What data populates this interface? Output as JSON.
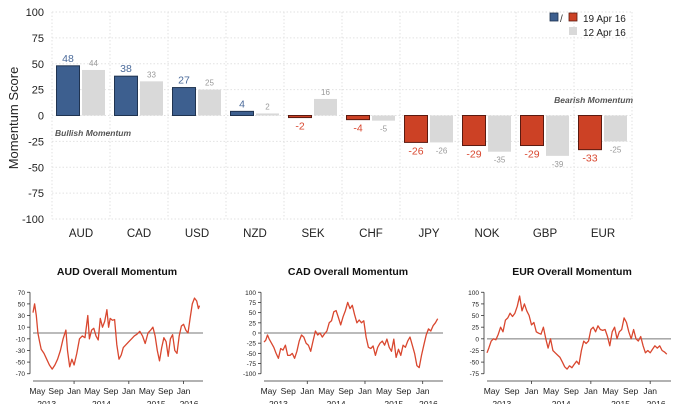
{
  "chart_data": [
    {
      "type": "bar",
      "title": "",
      "ylabel": "Momentum Score",
      "xlabel": "",
      "ylim": [
        -100,
        100
      ],
      "yticks": [
        100,
        75,
        50,
        25,
        0,
        -25,
        -50,
        -75,
        -100
      ],
      "grid": true,
      "categories": [
        "AUD",
        "CAD",
        "USD",
        "NZD",
        "SEK",
        "CHF",
        "JPY",
        "NOK",
        "GBP",
        "EUR"
      ],
      "series": [
        {
          "name": "19 Apr 16",
          "values": [
            48,
            38,
            27,
            4,
            -2,
            -4,
            -26,
            -29,
            -29,
            -33
          ]
        },
        {
          "name": "12 Apr 16",
          "values": [
            44,
            33,
            25,
            2,
            16,
            -5,
            -26,
            -35,
            -39,
            -25
          ]
        }
      ],
      "colors": {
        "bullish": "#3d5f8f",
        "bullish_dark": "#1f3350",
        "bearish": "#cc4125",
        "bearish_dark": "#5a1a10",
        "previous": "#d9d9d9",
        "bullish_label": "#4a6a9a",
        "bearish_label": "#d9472f",
        "previous_label": "#999999"
      },
      "legend": {
        "position": "top-right",
        "separator": "/",
        "current_label": "19 Apr 16",
        "previous_label": "12 Apr 16"
      },
      "annotations": {
        "bullish": "Bullish Momentum",
        "bearish": "Bearish Momentum"
      }
    },
    {
      "type": "line",
      "title": "AUD Overall Momentum",
      "ylim": [
        -75,
        70
      ],
      "yticks": [
        70,
        50,
        30,
        10,
        -10,
        -30,
        -50,
        -70
      ],
      "reference_line": 0,
      "x_month_labels": [
        "May",
        "Sep",
        "Jan",
        "May",
        "Sep",
        "Jan",
        "May",
        "Sep",
        "Jan"
      ],
      "x_year_labels": [
        "2013",
        "2014",
        "2015",
        "2016"
      ],
      "x_range": [
        2013.25,
        2016.3
      ],
      "series": [
        {
          "name": "AUD",
          "color": "#d9472f",
          "points": [
            [
              2013.25,
              35
            ],
            [
              2013.28,
              50
            ],
            [
              2013.31,
              30
            ],
            [
              2013.34,
              0
            ],
            [
              2013.37,
              -15
            ],
            [
              2013.4,
              -28
            ],
            [
              2013.45,
              -35
            ],
            [
              2013.5,
              -45
            ],
            [
              2013.55,
              -55
            ],
            [
              2013.6,
              -62
            ],
            [
              2013.65,
              -55
            ],
            [
              2013.7,
              -45
            ],
            [
              2013.75,
              -30
            ],
            [
              2013.8,
              -10
            ],
            [
              2013.85,
              5
            ],
            [
              2013.88,
              -30
            ],
            [
              2013.92,
              -58
            ],
            [
              2013.96,
              -45
            ],
            [
              2014.0,
              -55
            ],
            [
              2014.05,
              -35
            ],
            [
              2014.1,
              -10
            ],
            [
              2014.15,
              -5
            ],
            [
              2014.2,
              -8
            ],
            [
              2014.25,
              30
            ],
            [
              2014.28,
              -10
            ],
            [
              2014.32,
              5
            ],
            [
              2014.36,
              8
            ],
            [
              2014.4,
              -5
            ],
            [
              2014.44,
              -12
            ],
            [
              2014.48,
              25
            ],
            [
              2014.52,
              10
            ],
            [
              2014.56,
              20
            ],
            [
              2014.6,
              40
            ],
            [
              2014.63,
              10
            ],
            [
              2014.66,
              25
            ],
            [
              2014.7,
              22
            ],
            [
              2014.74,
              23
            ],
            [
              2014.78,
              -20
            ],
            [
              2014.82,
              -45
            ],
            [
              2014.86,
              -38
            ],
            [
              2014.9,
              -25
            ],
            [
              2014.95,
              -20
            ],
            [
              2015.0,
              -15
            ],
            [
              2015.05,
              -10
            ],
            [
              2015.1,
              -5
            ],
            [
              2015.15,
              -2
            ],
            [
              2015.2,
              3
            ],
            [
              2015.25,
              -5
            ],
            [
              2015.3,
              -18
            ],
            [
              2015.35,
              0
            ],
            [
              2015.4,
              5
            ],
            [
              2015.44,
              10
            ],
            [
              2015.48,
              -5
            ],
            [
              2015.52,
              -30
            ],
            [
              2015.56,
              -48
            ],
            [
              2015.6,
              -25
            ],
            [
              2015.64,
              -8
            ],
            [
              2015.68,
              -15
            ],
            [
              2015.72,
              -40
            ],
            [
              2015.76,
              -10
            ],
            [
              2015.8,
              -3
            ],
            [
              2015.84,
              -30
            ],
            [
              2015.88,
              -35
            ],
            [
              2015.92,
              -5
            ],
            [
              2015.96,
              12
            ],
            [
              2016.0,
              15
            ],
            [
              2016.04,
              5
            ],
            [
              2016.08,
              0
            ],
            [
              2016.12,
              25
            ],
            [
              2016.16,
              50
            ],
            [
              2016.2,
              60
            ],
            [
              2016.24,
              55
            ],
            [
              2016.27,
              42
            ],
            [
              2016.29,
              47
            ]
          ]
        }
      ]
    },
    {
      "type": "line",
      "title": "CAD Overall Momentum",
      "ylim": [
        -100,
        100
      ],
      "yticks": [
        100,
        75,
        50,
        25,
        0,
        -25,
        -50,
        -75,
        -100
      ],
      "reference_line": 0,
      "x_month_labels": [
        "May",
        "Sep",
        "Jan",
        "May",
        "Sep",
        "Jan",
        "May",
        "Sep",
        "Jan"
      ],
      "x_year_labels": [
        "2013",
        "2014",
        "2015",
        "2016"
      ],
      "x_range": [
        2013.25,
        2016.3
      ],
      "series": [
        {
          "name": "CAD",
          "color": "#d9472f",
          "points": [
            [
              2013.25,
              -22
            ],
            [
              2013.28,
              -18
            ],
            [
              2013.31,
              -5
            ],
            [
              2013.34,
              -15
            ],
            [
              2013.38,
              -25
            ],
            [
              2013.42,
              -35
            ],
            [
              2013.46,
              -50
            ],
            [
              2013.5,
              -62
            ],
            [
              2013.54,
              -38
            ],
            [
              2013.58,
              -42
            ],
            [
              2013.62,
              -30
            ],
            [
              2013.66,
              -55
            ],
            [
              2013.7,
              -55
            ],
            [
              2013.74,
              -50
            ],
            [
              2013.78,
              -62
            ],
            [
              2013.82,
              -45
            ],
            [
              2013.86,
              -20
            ],
            [
              2013.9,
              -5
            ],
            [
              2013.94,
              -10
            ],
            [
              2013.98,
              -25
            ],
            [
              2014.02,
              -30
            ],
            [
              2014.06,
              -45
            ],
            [
              2014.1,
              -20
            ],
            [
              2014.14,
              5
            ],
            [
              2014.18,
              -5
            ],
            [
              2014.22,
              0
            ],
            [
              2014.26,
              -10
            ],
            [
              2014.3,
              -2
            ],
            [
              2014.34,
              5
            ],
            [
              2014.38,
              25
            ],
            [
              2014.42,
              30
            ],
            [
              2014.46,
              52
            ],
            [
              2014.5,
              55
            ],
            [
              2014.54,
              38
            ],
            [
              2014.58,
              20
            ],
            [
              2014.62,
              40
            ],
            [
              2014.66,
              55
            ],
            [
              2014.7,
              75
            ],
            [
              2014.74,
              60
            ],
            [
              2014.78,
              68
            ],
            [
              2014.82,
              45
            ],
            [
              2014.86,
              25
            ],
            [
              2014.9,
              32
            ],
            [
              2014.94,
              25
            ],
            [
              2014.98,
              30
            ],
            [
              2015.02,
              -10
            ],
            [
              2015.06,
              -35
            ],
            [
              2015.1,
              -38
            ],
            [
              2015.14,
              -32
            ],
            [
              2015.18,
              -55
            ],
            [
              2015.22,
              -35
            ],
            [
              2015.26,
              -25
            ],
            [
              2015.3,
              -20
            ],
            [
              2015.34,
              -30
            ],
            [
              2015.38,
              -15
            ],
            [
              2015.42,
              -35
            ],
            [
              2015.46,
              -45
            ],
            [
              2015.5,
              -15
            ],
            [
              2015.54,
              -60
            ],
            [
              2015.58,
              -40
            ],
            [
              2015.62,
              -55
            ],
            [
              2015.66,
              -30
            ],
            [
              2015.7,
              -35
            ],
            [
              2015.74,
              -20
            ],
            [
              2015.78,
              -10
            ],
            [
              2015.82,
              -30
            ],
            [
              2015.86,
              -50
            ],
            [
              2015.9,
              -80
            ],
            [
              2015.94,
              -85
            ],
            [
              2015.98,
              -55
            ],
            [
              2016.02,
              -30
            ],
            [
              2016.06,
              -5
            ],
            [
              2016.1,
              10
            ],
            [
              2016.14,
              5
            ],
            [
              2016.18,
              18
            ],
            [
              2016.22,
              25
            ],
            [
              2016.26,
              35
            ]
          ]
        }
      ]
    },
    {
      "type": "line",
      "title": "EUR Overall Momentum",
      "ylim": [
        -80,
        100
      ],
      "yticks": [
        100,
        75,
        50,
        25,
        0,
        -25,
        -50,
        -75
      ],
      "reference_line": 0,
      "x_month_labels": [
        "May",
        "Sep",
        "Jan",
        "May",
        "Sep",
        "Jan",
        "May",
        "Sep",
        "Jan"
      ],
      "x_year_labels": [
        "2013",
        "2014",
        "2015",
        "2016"
      ],
      "x_range": [
        2013.25,
        2016.3
      ],
      "series": [
        {
          "name": "EUR",
          "color": "#d9472f",
          "points": [
            [
              2013.25,
              -30
            ],
            [
              2013.28,
              -20
            ],
            [
              2013.32,
              -5
            ],
            [
              2013.36,
              0
            ],
            [
              2013.4,
              -2
            ],
            [
              2013.44,
              10
            ],
            [
              2013.48,
              25
            ],
            [
              2013.52,
              15
            ],
            [
              2013.56,
              40
            ],
            [
              2013.6,
              45
            ],
            [
              2013.64,
              55
            ],
            [
              2013.68,
              48
            ],
            [
              2013.72,
              55
            ],
            [
              2013.76,
              70
            ],
            [
              2013.8,
              92
            ],
            [
              2013.84,
              60
            ],
            [
              2013.88,
              75
            ],
            [
              2013.92,
              60
            ],
            [
              2013.96,
              50
            ],
            [
              2014.0,
              30
            ],
            [
              2014.04,
              35
            ],
            [
              2014.08,
              15
            ],
            [
              2014.12,
              12
            ],
            [
              2014.16,
              10
            ],
            [
              2014.2,
              25
            ],
            [
              2014.24,
              0
            ],
            [
              2014.28,
              -20
            ],
            [
              2014.32,
              0
            ],
            [
              2014.36,
              -25
            ],
            [
              2014.4,
              -30
            ],
            [
              2014.44,
              -35
            ],
            [
              2014.48,
              -40
            ],
            [
              2014.52,
              -50
            ],
            [
              2014.56,
              -60
            ],
            [
              2014.6,
              -65
            ],
            [
              2014.64,
              -58
            ],
            [
              2014.68,
              -62
            ],
            [
              2014.72,
              -55
            ],
            [
              2014.76,
              -48
            ],
            [
              2014.8,
              -55
            ],
            [
              2014.84,
              -25
            ],
            [
              2014.88,
              -5
            ],
            [
              2014.92,
              -10
            ],
            [
              2014.96,
              -5
            ],
            [
              2015.0,
              20
            ],
            [
              2015.04,
              25
            ],
            [
              2015.08,
              15
            ],
            [
              2015.12,
              28
            ],
            [
              2015.16,
              20
            ],
            [
              2015.2,
              18
            ],
            [
              2015.24,
              20
            ],
            [
              2015.28,
              5
            ],
            [
              2015.32,
              -15
            ],
            [
              2015.36,
              15
            ],
            [
              2015.4,
              25
            ],
            [
              2015.44,
              0
            ],
            [
              2015.48,
              15
            ],
            [
              2015.52,
              20
            ],
            [
              2015.56,
              45
            ],
            [
              2015.6,
              35
            ],
            [
              2015.64,
              15
            ],
            [
              2015.68,
              0
            ],
            [
              2015.72,
              20
            ],
            [
              2015.76,
              0
            ],
            [
              2015.8,
              -5
            ],
            [
              2015.84,
              5
            ],
            [
              2015.88,
              -15
            ],
            [
              2015.92,
              -30
            ],
            [
              2015.96,
              -25
            ],
            [
              2016.0,
              -30
            ],
            [
              2016.04,
              -22
            ],
            [
              2016.08,
              -15
            ],
            [
              2016.12,
              -20
            ],
            [
              2016.16,
              -15
            ],
            [
              2016.2,
              -25
            ],
            [
              2016.24,
              -28
            ],
            [
              2016.28,
              -33
            ]
          ]
        }
      ]
    }
  ]
}
